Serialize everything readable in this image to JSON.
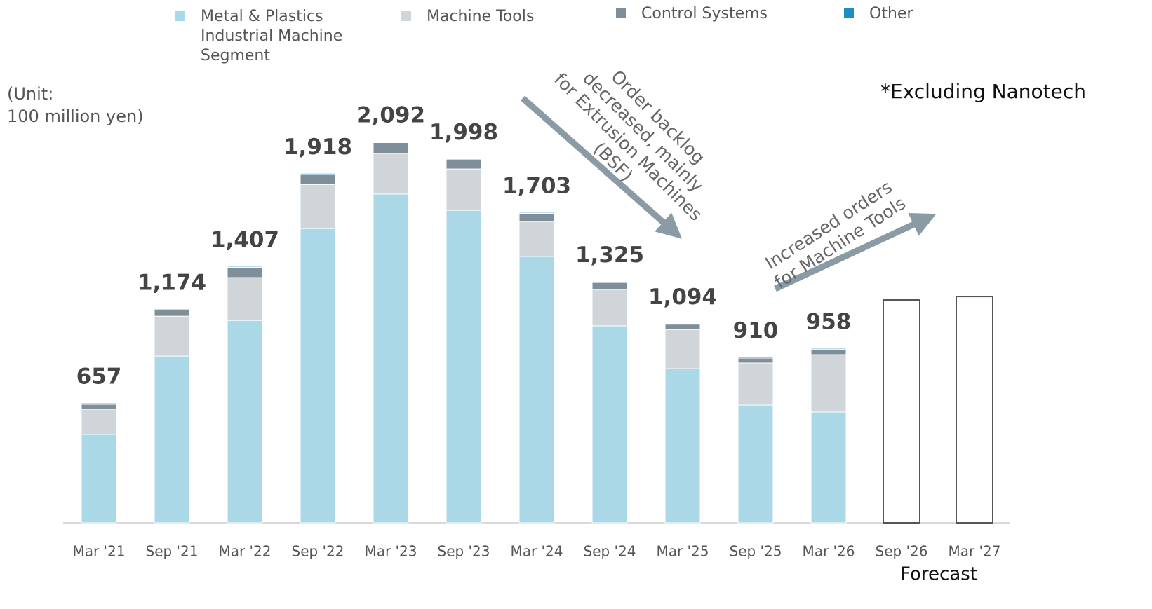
{
  "chart_data": {
    "type": "bar",
    "categories": [
      "Mar '21",
      "Sep '21",
      "Mar '22",
      "Sep '22",
      "Mar '23",
      "Sep '23",
      "Mar '24",
      "Sep '24",
      "Mar '25",
      "Sep '25",
      "Mar '26",
      "Sep '26",
      "Mar '27"
    ],
    "series": [
      {
        "name": "Metal & Plastics Industrial Machine Segment",
        "color": "#aad8e6",
        "values": [
          485,
          915,
          1111,
          1615,
          1804,
          1715,
          1462,
          1081,
          846,
          646,
          608,
          null,
          null
        ]
      },
      {
        "name": "Machine Tools",
        "color": "#cfd5d8",
        "values": [
          138,
          219,
          235,
          242,
          223,
          227,
          192,
          200,
          215,
          231,
          315,
          null,
          null
        ]
      },
      {
        "name": "Control Systems",
        "color": "#7f8f99",
        "values": [
          27,
          35,
          56,
          55,
          60,
          51,
          44,
          38,
          29,
          27,
          30,
          null,
          null
        ]
      },
      {
        "name": "Other",
        "color": "#1b8fc4",
        "values": [
          7,
          5,
          5,
          6,
          5,
          5,
          5,
          6,
          4,
          6,
          5,
          null,
          null
        ]
      }
    ],
    "totals": [
      657,
      1174,
      1407,
      1918,
      2092,
      1998,
      1703,
      1325,
      1094,
      910,
      958,
      null,
      null
    ],
    "value_labels": [
      "657",
      "1,174",
      "1,407",
      "1,918",
      "2,092",
      "1,998",
      "1,703",
      "1,325",
      "1,094",
      "910",
      "958",
      null,
      null
    ],
    "forecast_values": [
      null,
      null,
      null,
      null,
      null,
      null,
      null,
      null,
      null,
      null,
      null,
      1223,
      1242
    ],
    "forecast_label": "Forecast",
    "unit_label": [
      "(Unit:",
      "100 million yen)"
    ],
    "note": "*Excluding Nanotech",
    "annotations": [
      [
        "Order backlog",
        "decreased, mainly",
        "for Extrusion Machines",
        "(BSF)"
      ],
      [
        "Increased orders",
        "for Machine Tools"
      ]
    ]
  }
}
